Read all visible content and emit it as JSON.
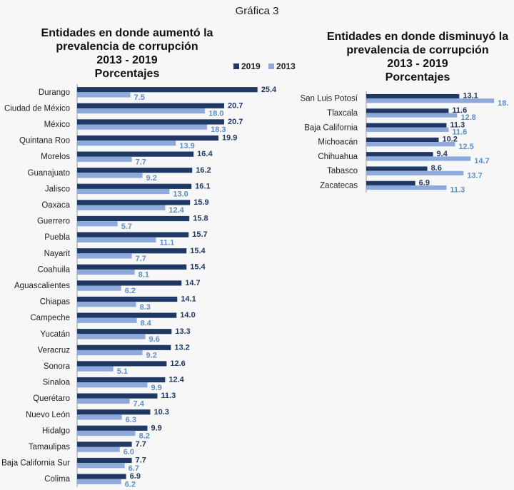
{
  "figure_title": "Gráfica 3",
  "colors": {
    "y2019": "#1f3864",
    "y2013": "#8eaadb",
    "label2013": "#5b8fc9"
  },
  "legend": [
    {
      "key": "y2019",
      "label": "2019"
    },
    {
      "key": "y2013",
      "label": "2013"
    }
  ],
  "chart_data": [
    {
      "type": "bar",
      "orientation": "horizontal",
      "title_lines": [
        "Entidades en donde aumentó la",
        "prevalencia de corrupción",
        "2013 - 2019",
        "Porcentajes"
      ],
      "categories": [
        "Durango",
        "Ciudad de México",
        "México",
        "Quintana Roo",
        "Morelos",
        "Guanajuato",
        "Jalisco",
        "Oaxaca",
        "Guerrero",
        "Puebla",
        "Nayarit",
        "Coahuila",
        "Aguascalientes",
        "Chiapas",
        "Campeche",
        "Yucatán",
        "Veracruz",
        "Sonora",
        "Sinaloa",
        "Querétaro",
        "Nuevo León",
        "Hidalgo",
        "Tamaulipas",
        "Baja California Sur",
        "Colima"
      ],
      "series": [
        {
          "name": "2019",
          "values": [
            25.4,
            20.7,
            20.7,
            19.9,
            16.4,
            16.2,
            16.1,
            15.9,
            15.8,
            15.7,
            15.4,
            15.4,
            14.7,
            14.1,
            14.0,
            13.3,
            13.2,
            12.6,
            12.4,
            11.3,
            10.3,
            9.9,
            7.7,
            7.7,
            6.9
          ]
        },
        {
          "name": "2013",
          "values": [
            7.5,
            18.0,
            18.3,
            13.9,
            7.7,
            9.2,
            13.0,
            12.4,
            5.7,
            11.1,
            7.7,
            8.1,
            6.2,
            8.3,
            8.4,
            9.6,
            9.2,
            5.1,
            9.9,
            7.4,
            6.3,
            8.2,
            6.0,
            6.7,
            6.2
          ]
        }
      ],
      "value_labels": {
        "2019": [
          "25.4",
          "20.7",
          "20.7",
          "19.9",
          "16.4",
          "16.2",
          "16.1",
          "15.9",
          "15.8",
          "15.7",
          "15.4",
          "15.4",
          "14.7",
          "14.1",
          "14.0",
          "13.3",
          "13.2",
          "12.6",
          "12.4",
          "11.3",
          "10.3",
          "9.9",
          "7.7",
          "7.7",
          "6.9"
        ],
        "2013": [
          "7.5",
          "18.0",
          "18.3",
          "13.9",
          "7.7",
          "9.2",
          "13.0",
          "12.4",
          "5.7",
          "11.1",
          "7.7",
          "8.1",
          "6.2",
          "8.3",
          "8.4",
          "9.6",
          "9.2",
          "5.1",
          "9.9",
          "7.4",
          "6.3",
          "8.2",
          "6.0",
          "6.7",
          "6.2"
        ]
      }
    },
    {
      "type": "bar",
      "orientation": "horizontal",
      "title_lines": [
        "Entidades en donde disminuyó la",
        "prevalencia de corrupción",
        "2013 - 2019",
        "Porcentajes"
      ],
      "categories": [
        "San Luis Potosí",
        "Tlaxcala",
        "Baja California",
        "Michoacán",
        "Chihuahua",
        "Tabasco",
        "Zacatecas"
      ],
      "series": [
        {
          "name": "2019",
          "values": [
            13.1,
            11.6,
            11.3,
            10.2,
            9.4,
            8.6,
            6.9
          ]
        },
        {
          "name": "2013",
          "values": [
            18.0,
            12.8,
            11.6,
            12.5,
            14.7,
            13.7,
            11.3
          ]
        }
      ],
      "value_labels": {
        "2019": [
          "13.1",
          "11.6",
          "11.3",
          "10.2",
          "9.4",
          "8.6",
          "6.9"
        ],
        "2013": [
          "18.",
          "12.8",
          "11.6",
          "12.5",
          "14.7",
          "13.7",
          "11.3"
        ]
      }
    }
  ]
}
